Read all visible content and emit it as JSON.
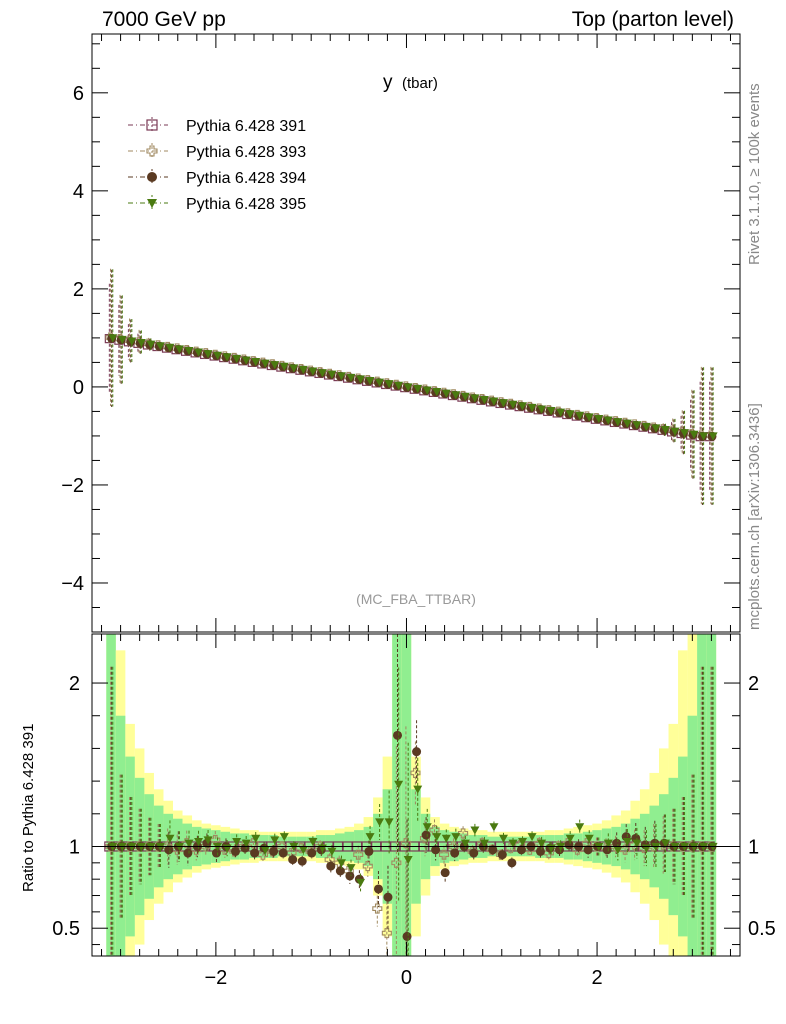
{
  "header": {
    "left": "7000 GeV pp",
    "right": "Top (parton level)"
  },
  "side": {
    "rivet": "Rivet 3.1.10, ≥ 100k events",
    "mcplots": "mcplots.cern.ch [arXiv:1306.3436]"
  },
  "chart_data": {
    "type": "scatter",
    "title_main": "y",
    "title_sub": "(tbar)",
    "watermark": "(MC_FBA_TTBAR)",
    "main": {
      "xlim": [
        -3.3,
        3.5
      ],
      "ylim": [
        -5,
        7.2
      ],
      "yticks": [
        -4,
        -2,
        0,
        2,
        4,
        6
      ],
      "ytick_labels": [
        "−4",
        "−2",
        "0",
        "2",
        "4",
        "6"
      ]
    },
    "ratio": {
      "ylabel": "Ratio to Pythia 6.428 391",
      "ylim": [
        0.33,
        2.3
      ],
      "yticks": [
        0.5,
        1,
        2
      ],
      "ytick_labels": [
        "0.5",
        "1",
        "2"
      ],
      "xticks": [
        -2,
        0,
        2
      ],
      "xtick_labels": [
        "−2",
        "0",
        "2"
      ]
    },
    "series": [
      {
        "name": "Pythia 6.428 391",
        "marker": "open-square",
        "color": "#7a3a55"
      },
      {
        "name": "Pythia 6.428 393",
        "marker": "open-cross",
        "color": "#a08a60"
      },
      {
        "name": "Pythia 6.428 394",
        "marker": "filled-circle",
        "color": "#5a3a22"
      },
      {
        "name": "Pythia 6.428 395",
        "marker": "filled-triangle-down",
        "color": "#4a7a10"
      }
    ],
    "x": [
      -3.1,
      -3.0,
      -2.9,
      -2.8,
      -2.7,
      -2.6,
      -2.5,
      -2.4,
      -2.3,
      -2.2,
      -2.1,
      -2.0,
      -1.9,
      -1.8,
      -1.7,
      -1.6,
      -1.5,
      -1.4,
      -1.3,
      -1.2,
      -1.1,
      -1.0,
      -0.9,
      -0.8,
      -0.7,
      -0.6,
      -0.5,
      -0.4,
      -0.3,
      -0.2,
      -0.1,
      0.0,
      0.1,
      0.2,
      0.3,
      0.4,
      0.5,
      0.6,
      0.7,
      0.8,
      0.9,
      1.0,
      1.1,
      1.2,
      1.3,
      1.4,
      1.5,
      1.6,
      1.7,
      1.8,
      1.9,
      2.0,
      2.1,
      2.2,
      2.3,
      2.4,
      2.5,
      2.6,
      2.7,
      2.8,
      2.9,
      3.0,
      3.1,
      3.2
    ],
    "ratio_394": [
      1.0,
      1.0,
      1.0,
      1.0,
      1.0,
      1.0,
      0.98,
      1.0,
      0.96,
      1.0,
      1.02,
      0.96,
      1.0,
      0.97,
      0.99,
      0.96,
      0.99,
      0.97,
      0.96,
      0.92,
      0.91,
      0.96,
      0.98,
      0.88,
      0.85,
      0.82,
      0.8,
      0.97,
      0.74,
      0.69,
      1.68,
      0.45,
      1.58,
      1.07,
      0.98,
      0.84,
      0.96,
      1.0,
      0.96,
      1.0,
      0.98,
      0.95,
      0.9,
      0.98,
      1.0,
      0.97,
      0.99,
      0.98,
      1.01,
      1.0,
      0.98,
      1.0,
      0.98,
      1.02,
      1.06,
      1.05,
      1.01,
      1.02,
      1.02,
      1.0,
      1.0,
      1.0,
      1.0,
      1.0
    ],
    "ratio_395": [
      1.0,
      1.0,
      1.0,
      1.0,
      1.0,
      1.0,
      1.05,
      1.0,
      1.02,
      1.03,
      1.04,
      1.0,
      0.99,
      1.03,
      1.02,
      1.05,
      0.98,
      1.04,
      1.06,
      1.0,
      0.98,
      1.03,
      0.99,
      0.97,
      0.9,
      0.87,
      0.78,
      1.06,
      1.15,
      1.15,
      1.38,
      0.92,
      1.35,
      1.12,
      1.06,
      1.05,
      1.06,
      1.02,
      1.1,
      1.02,
      1.12,
      1.05,
      1.02,
      1.03,
      1.06,
      1.02,
      0.99,
      1.0,
      1.05,
      1.12,
      1.05,
      1.0,
      1.02,
      0.98,
      1.03,
      1.02,
      0.99,
      1.0,
      1.02,
      1.0,
      1.0,
      1.0,
      1.0,
      1.0
    ],
    "ratio_393": [
      1.0,
      1.0,
      1.0,
      1.0,
      1.0,
      1.0,
      1.0,
      0.98,
      1.02,
      0.98,
      1.0,
      1.04,
      0.98,
      0.97,
      1.0,
      1.02,
      0.95,
      0.97,
      1.0,
      0.96,
      0.99,
      0.97,
      1.0,
      0.92,
      0.9,
      0.85,
      0.95,
      0.88,
      0.62,
      0.47,
      0.9,
      1.02,
      1.45,
      1.05,
      1.1,
      0.95,
      1.0,
      1.08,
      0.97,
      1.02,
      0.98,
      0.95,
      0.99,
      1.01,
      0.98,
      1.02,
      0.96,
      1.0,
      1.02,
      0.98,
      1.02,
      1.0,
      0.99,
      1.0,
      0.98,
      1.01,
      0.99,
      1.0,
      1.01,
      1.0,
      1.0,
      1.0,
      1.0,
      1.0
    ],
    "band_green_halfwidth": [
      2.0,
      0.8,
      0.55,
      0.42,
      0.32,
      0.25,
      0.2,
      0.17,
      0.14,
      0.12,
      0.11,
      0.1,
      0.09,
      0.08,
      0.08,
      0.07,
      0.07,
      0.07,
      0.06,
      0.06,
      0.06,
      0.06,
      0.07,
      0.07,
      0.08,
      0.09,
      0.1,
      0.12,
      0.2,
      0.35,
      1.3,
      1.3,
      0.35,
      0.2,
      0.12,
      0.1,
      0.09,
      0.08,
      0.07,
      0.07,
      0.06,
      0.06,
      0.06,
      0.06,
      0.06,
      0.07,
      0.07,
      0.07,
      0.08,
      0.08,
      0.09,
      0.1,
      0.11,
      0.12,
      0.14,
      0.17,
      0.2,
      0.25,
      0.32,
      0.42,
      0.55,
      0.8,
      2.0,
      2.0
    ],
    "band_yellow_halfwidth": [
      2.2,
      1.2,
      0.75,
      0.6,
      0.45,
      0.35,
      0.28,
      0.22,
      0.19,
      0.16,
      0.14,
      0.13,
      0.12,
      0.11,
      0.1,
      0.1,
      0.09,
      0.09,
      0.09,
      0.09,
      0.09,
      0.09,
      0.1,
      0.1,
      0.11,
      0.12,
      0.14,
      0.18,
      0.3,
      0.55,
      1.4,
      1.4,
      0.55,
      0.3,
      0.18,
      0.14,
      0.12,
      0.11,
      0.1,
      0.1,
      0.09,
      0.09,
      0.09,
      0.09,
      0.09,
      0.09,
      0.1,
      0.1,
      0.11,
      0.12,
      0.13,
      0.14,
      0.16,
      0.19,
      0.22,
      0.28,
      0.35,
      0.45,
      0.6,
      0.75,
      1.2,
      2.2,
      2.2,
      2.2
    ]
  }
}
